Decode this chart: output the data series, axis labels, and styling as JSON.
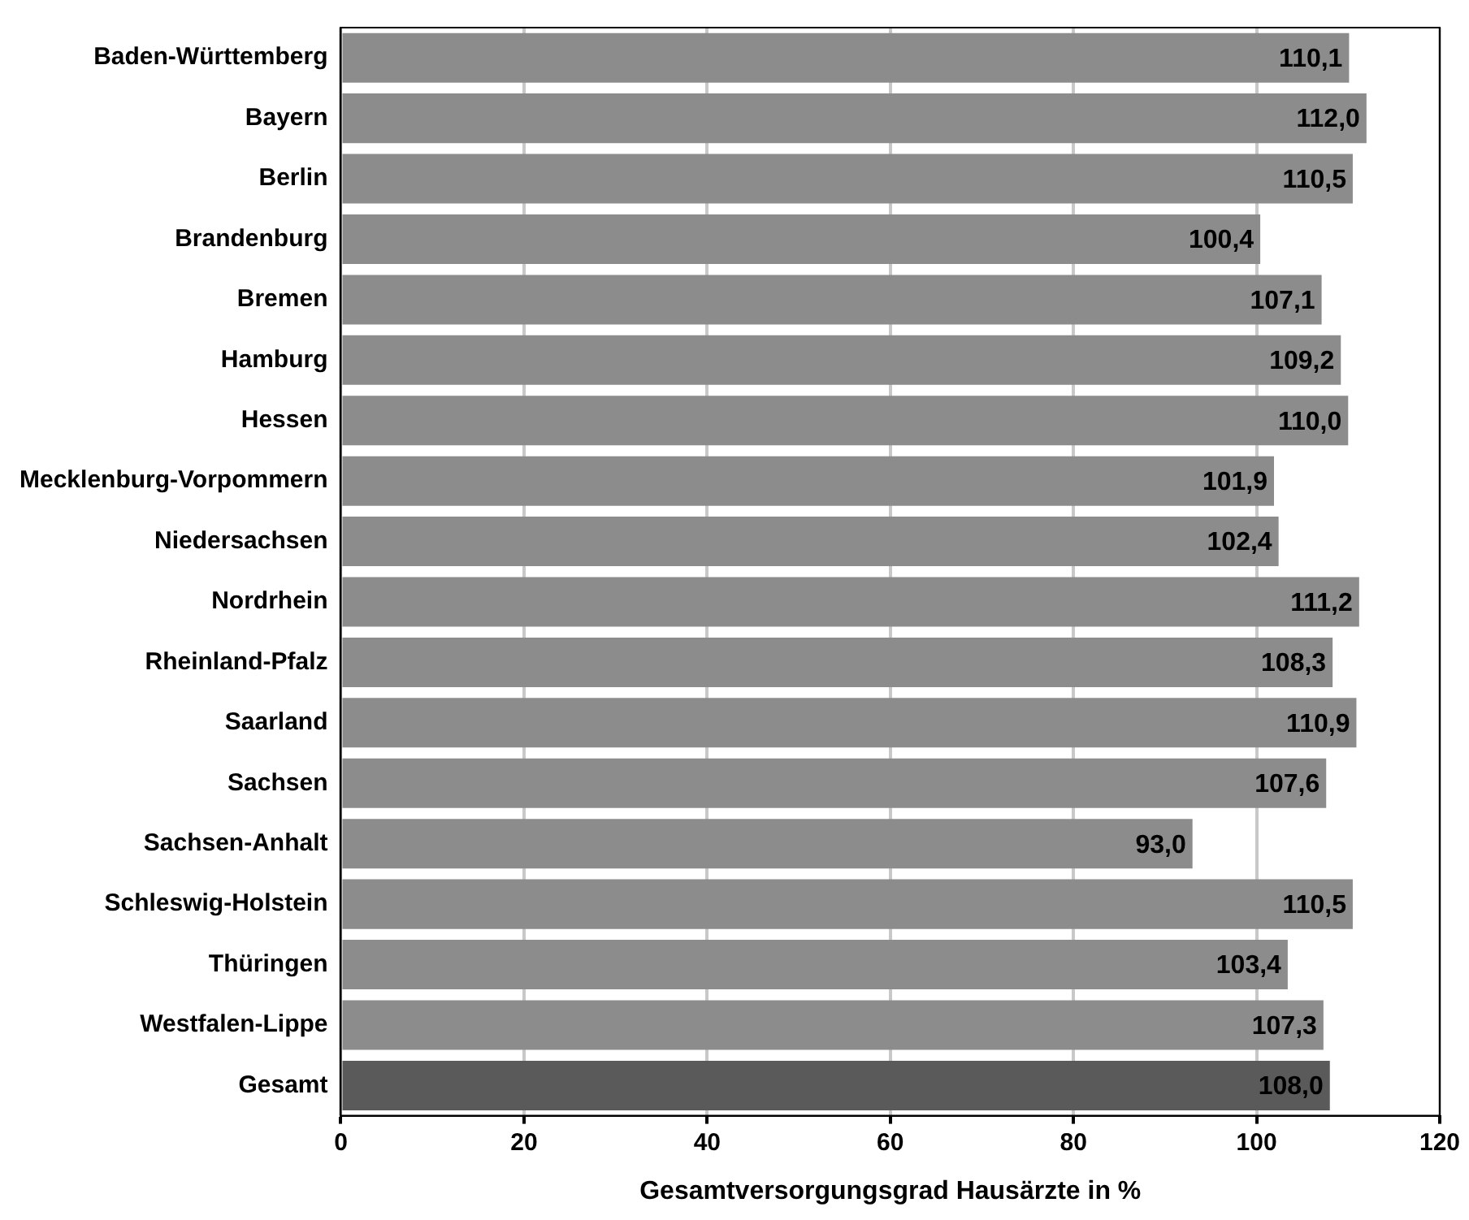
{
  "chart_data": {
    "type": "bar",
    "orientation": "horizontal",
    "xlabel": "Gesamtversorgungsgrad Hausärzte in %",
    "categories": [
      "Baden-Württemberg",
      "Bayern",
      "Berlin",
      "Brandenburg",
      "Bremen",
      "Hamburg",
      "Hessen",
      "Mecklenburg-Vorpommern",
      "Niedersachsen",
      "Nordrhein",
      "Rheinland-Pfalz",
      "Saarland",
      "Sachsen",
      "Sachsen-Anhalt",
      "Schleswig-Holstein",
      "Thüringen",
      "Westfalen-Lippe",
      "Gesamt"
    ],
    "values": [
      110.1,
      112.0,
      110.5,
      100.4,
      107.1,
      109.2,
      110.0,
      101.9,
      102.4,
      111.2,
      108.3,
      110.9,
      107.6,
      93.0,
      110.5,
      103.4,
      107.3,
      108.0
    ],
    "value_labels": [
      "110,1",
      "112,0",
      "110,5",
      "100,4",
      "107,1",
      "109,2",
      "110,0",
      "101,9",
      "102,4",
      "111,2",
      "108,3",
      "110,9",
      "107,6",
      "93,0",
      "110,5",
      "103,4",
      "107,3",
      "108,0"
    ],
    "colors": [
      "#8c8c8c",
      "#8c8c8c",
      "#8c8c8c",
      "#8c8c8c",
      "#8c8c8c",
      "#8c8c8c",
      "#8c8c8c",
      "#8c8c8c",
      "#8c8c8c",
      "#8c8c8c",
      "#8c8c8c",
      "#8c8c8c",
      "#8c8c8c",
      "#8c8c8c",
      "#8c8c8c",
      "#8c8c8c",
      "#8c8c8c",
      "#5a5a5a"
    ],
    "xlim": [
      0,
      120
    ],
    "xticks": [
      0,
      20,
      40,
      60,
      80,
      100,
      120
    ],
    "grid": "x",
    "legend": false
  }
}
